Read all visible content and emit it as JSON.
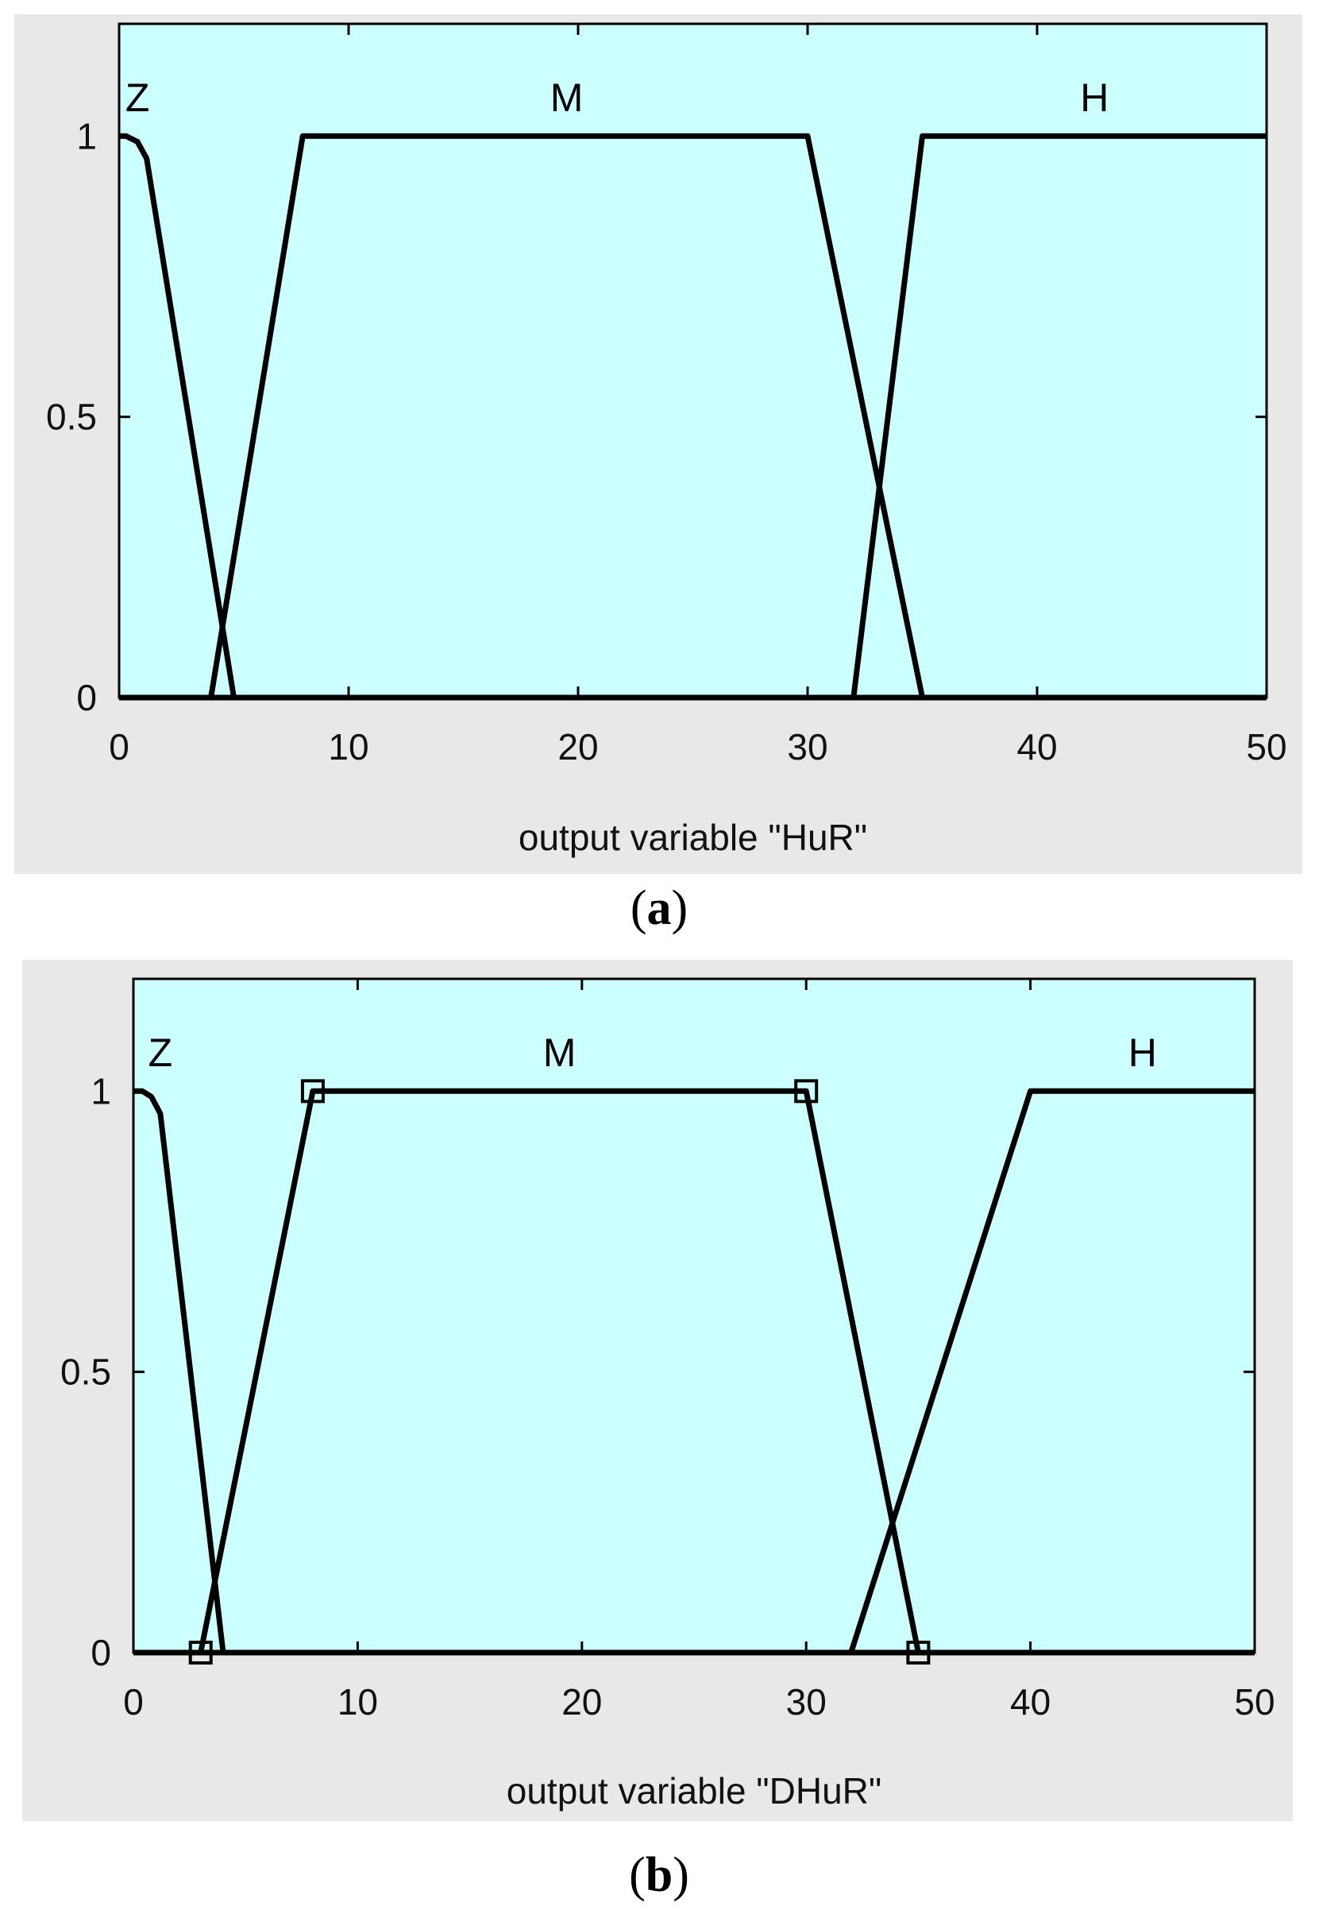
{
  "panels": [
    {
      "caption_open": "(",
      "caption_letter": "a",
      "caption_close": ")",
      "chart_data": {
        "type": "line",
        "title": "",
        "xlabel": "output variable \"HuR\"",
        "ylabel": "",
        "xlim": [
          0,
          50
        ],
        "ylim": [
          0,
          1.2
        ],
        "x_ticks": [
          0,
          10,
          20,
          30,
          40,
          50
        ],
        "y_ticks": [
          0,
          0.5,
          1
        ],
        "x_tick_labels": [
          "0",
          "10",
          "20",
          "30",
          "40",
          "50"
        ],
        "y_tick_labels": [
          "0",
          "0.5",
          "1"
        ],
        "grid": false,
        "background_color": "#ccffff",
        "frame_color": "#e8e8e8",
        "line_color": "#000000",
        "series": [
          {
            "name": "Z",
            "x": [
              0,
              0.3,
              0.8,
              1.2,
              5
            ],
            "y": [
              1,
              1,
              0.99,
              0.96,
              0
            ],
            "label_at": [
              0.8,
              1.07
            ]
          },
          {
            "name": "M",
            "x": [
              4,
              8,
              30,
              35
            ],
            "y": [
              0,
              1,
              1,
              0
            ],
            "label_at": [
              19.5,
              1.07
            ]
          },
          {
            "name": "H",
            "x": [
              32,
              35,
              50
            ],
            "y": [
              0,
              1,
              1
            ],
            "label_at": [
              42.5,
              1.07
            ]
          }
        ],
        "markers": []
      }
    },
    {
      "caption_open": "(",
      "caption_letter": "b",
      "caption_close": ")",
      "chart_data": {
        "type": "line",
        "title": "",
        "xlabel": "output variable \"DHuR\"",
        "ylabel": "",
        "xlim": [
          0,
          50
        ],
        "ylim": [
          0,
          1.2
        ],
        "x_ticks": [
          0,
          10,
          20,
          30,
          40,
          50
        ],
        "y_ticks": [
          0,
          0.5,
          1
        ],
        "x_tick_labels": [
          "0",
          "10",
          "20",
          "30",
          "40",
          "50"
        ],
        "y_tick_labels": [
          "0",
          "0.5",
          "1"
        ],
        "grid": false,
        "background_color": "#ccffff",
        "frame_color": "#e8e8e8",
        "line_color": "#000000",
        "series": [
          {
            "name": "Z",
            "x": [
              0,
              0.4,
              0.8,
              1.2,
              4
            ],
            "y": [
              1,
              1,
              0.99,
              0.96,
              0
            ],
            "label_at": [
              1.2,
              1.07
            ]
          },
          {
            "name": "M",
            "x": [
              3,
              8,
              30,
              35
            ],
            "y": [
              0,
              1,
              1,
              0
            ],
            "label_at": [
              19.0,
              1.07
            ]
          },
          {
            "name": "H",
            "x": [
              32,
              40,
              50
            ],
            "y": [
              0,
              1,
              1
            ],
            "label_at": [
              45.0,
              1.07
            ]
          }
        ],
        "markers": [
          {
            "x": 3,
            "y": 0
          },
          {
            "x": 8,
            "y": 1
          },
          {
            "x": 30,
            "y": 1
          },
          {
            "x": 35,
            "y": 0
          }
        ]
      }
    }
  ]
}
